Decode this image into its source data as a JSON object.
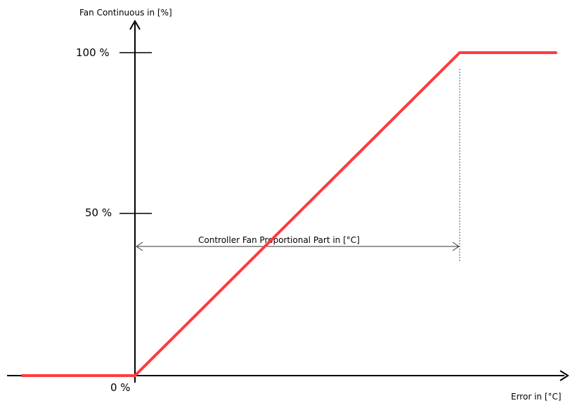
{
  "chart_data": {
    "type": "line",
    "ylabel": "Fan Continuous in [%]",
    "xlabel": "Error in [°C]",
    "y_ticks": [
      "100 %",
      "50 %"
    ],
    "origin_label": "0 %",
    "annotation": "Controller Fan Proportional Part in [°C]",
    "ylim": [
      0,
      100
    ],
    "xlim": [
      -0.35,
      1.35
    ],
    "series": [
      {
        "color": "#ff3b3b",
        "x": [
          -0.35,
          0,
          1,
          1.3
        ],
        "y": [
          0,
          0,
          100,
          100
        ]
      }
    ],
    "grid": false
  }
}
